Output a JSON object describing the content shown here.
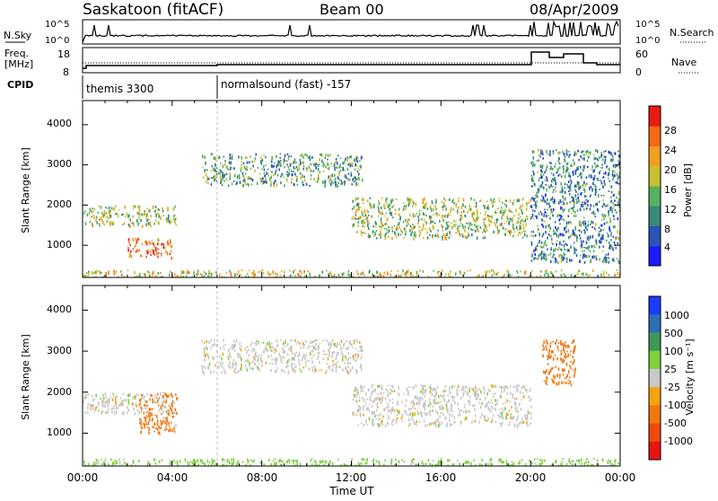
{
  "header": {
    "station": "Saskatoon (fitACF)",
    "beam": "Beam 00",
    "date": "08/Apr/2009"
  },
  "nsky_panel": {
    "left_label": "N.Sky",
    "right_label": "N.Search",
    "left_ticks": [
      "10^5",
      "10^0"
    ],
    "right_ticks": [
      "10^5",
      "10^0"
    ]
  },
  "freq_panel": {
    "left_label_line1": "Freq.",
    "left_label_line2": "[MHz]",
    "right_label": "Nave",
    "left_ticks": [
      "18",
      "8"
    ],
    "right_ticks": [
      "60",
      "0"
    ]
  },
  "cpid_panel": {
    "label": "CPID",
    "segments": [
      {
        "text": "themis 3300"
      },
      {
        "text": "normalsound (fast) -157"
      }
    ]
  },
  "power_panel": {
    "ylabel": "Slant Range [km]",
    "yticks": [
      "1000",
      "2000",
      "3000",
      "4000"
    ],
    "colorbar_label": "Power [dB]",
    "colorbar_ticks": [
      "4",
      "8",
      "12",
      "16",
      "20",
      "24",
      "28"
    ],
    "colorbar_colors": [
      "#1c1cff",
      "#2a55b8",
      "#3a8a78",
      "#58b060",
      "#c6c030",
      "#f0a020",
      "#f46a18",
      "#e81c14"
    ]
  },
  "velocity_panel": {
    "ylabel": "Slant Range [km]",
    "yticks": [
      "1000",
      "2000",
      "3000",
      "4000"
    ],
    "colorbar_label": "Velocity [m s⁻¹]",
    "colorbar_ticks": [
      "1000",
      "500",
      "100",
      "25",
      "-25",
      "-100",
      "-500",
      "-1000"
    ],
    "colorbar_colors": [
      "#1c3cff",
      "#2f6fb5",
      "#3e9858",
      "#7ed040",
      "#c8c8c8",
      "#f4a410",
      "#f07810",
      "#f04a10",
      "#e81414"
    ]
  },
  "x_axis": {
    "title": "Time UT",
    "ticks": [
      "00:00",
      "04:00",
      "08:00",
      "12:00",
      "16:00",
      "20:00",
      "00:00"
    ]
  },
  "chart_data": {
    "type": "heatmap",
    "x_unit": "UT",
    "x_range": [
      "00:00",
      "24:00"
    ],
    "y_range_km": [
      200,
      4600
    ],
    "mode_change_ut": "06:00",
    "nave_dotted_level": 30,
    "power_regions": [
      {
        "t_start": 0.0,
        "t_end": 4.2,
        "r_start": 1500,
        "r_end": 2000,
        "power_db": 16
      },
      {
        "t_start": 2.0,
        "t_end": 4.0,
        "r_start": 700,
        "r_end": 1200,
        "power_db": 26
      },
      {
        "t_start": 5.3,
        "t_end": 12.5,
        "r_start": 2500,
        "r_end": 3300,
        "power_db": 12
      },
      {
        "t_start": 12.0,
        "t_end": 20.0,
        "r_start": 1200,
        "r_end": 2200,
        "power_db": 16
      },
      {
        "t_start": 20.0,
        "t_end": 24.0,
        "r_start": 600,
        "r_end": 3400,
        "power_db": 10
      },
      {
        "t_start": 0.0,
        "t_end": 24.0,
        "r_start": 200,
        "r_end": 400,
        "power_db": 18
      }
    ],
    "velocity_regions": [
      {
        "t_start": 0.0,
        "t_end": 4.2,
        "r_start": 1500,
        "r_end": 2000,
        "velocity_ms": 0
      },
      {
        "t_start": 2.5,
        "t_end": 4.2,
        "r_start": 1000,
        "r_end": 2000,
        "velocity_ms": -300
      },
      {
        "t_start": 5.3,
        "t_end": 12.5,
        "r_start": 2500,
        "r_end": 3300,
        "velocity_ms": 0
      },
      {
        "t_start": 12.0,
        "t_end": 20.0,
        "r_start": 1200,
        "r_end": 2200,
        "velocity_ms": 0
      },
      {
        "t_start": 20.5,
        "t_end": 22.0,
        "r_start": 2200,
        "r_end": 3300,
        "velocity_ms": -400
      },
      {
        "t_start": 0.0,
        "t_end": 24.0,
        "r_start": 200,
        "r_end": 400,
        "velocity_ms": 50
      }
    ]
  }
}
